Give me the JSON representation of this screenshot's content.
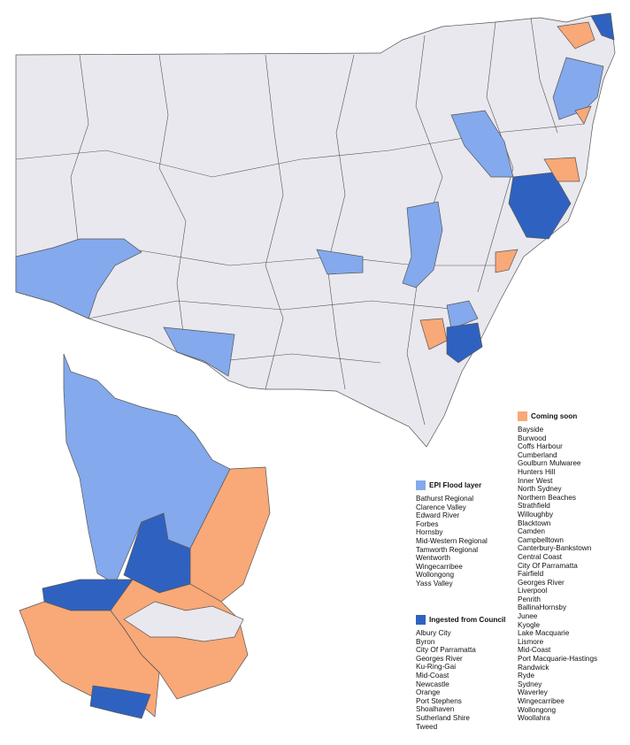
{
  "legend": [
    {
      "title": "Coming soon",
      "color": "#f9a878",
      "items": [
        "Bayside",
        "Burwood",
        "Coffs Harbour",
        "Cumberland",
        "Goulburn Mulwaree",
        "Hunters Hill",
        "Inner West",
        "North Sydney",
        "Northern Beaches",
        "Strathfield",
        "Willoughby",
        "Blacktown",
        "Camden",
        "Campbelltown",
        "Canterbury-Bankstown",
        "Central Coast",
        "City Of Parramatta",
        "Fairfield",
        "Georges River",
        "Liverpool",
        "Penrith",
        "BallinaHornsby",
        "Junee",
        "Kyogle",
        "Lake Macquarie",
        "Lismore",
        "Mid-Coast",
        "Port Macquarie-Hastings",
        "Randwick",
        "Ryde",
        "Sydney",
        "Waverley",
        "Wingecarribee",
        "Wollongong",
        "Woollahra"
      ]
    },
    {
      "title": "EPI Flood layer",
      "color": "#84a9ec",
      "items": [
        "Bathurst Regional",
        "Clarence Valley",
        "Edward River",
        "Forbes",
        "Hornsby",
        "Mid-Western Regional",
        "Tamworth Regional",
        "Wentworth",
        "Wingecarribee",
        "Wollongong",
        "Yass Valley"
      ]
    },
    {
      "title": "Ingested from Council",
      "color": "#2f62c0",
      "items": [
        "Albury City",
        "Byron",
        "City Of Parramatta",
        "Georges River",
        "Ku-Ring-Gai",
        "Mid-Coast",
        "Newcastle",
        "Orange",
        "Port Stephens",
        "Shoalhaven",
        "Sutherland Shire",
        "Tweed"
      ]
    }
  ]
}
